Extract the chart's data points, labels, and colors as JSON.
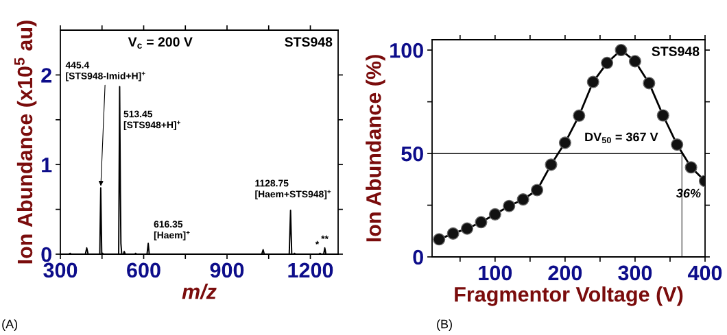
{
  "chart_data": [
    {
      "type": "line",
      "title": "STS948",
      "xlabel": "m/z",
      "ylabel": "Ion Abundance (x10$^{5}$ au)",
      "series": [
        {
          "color": "#000000",
          "x": [
            300,
            330,
            335,
            340,
            390,
            395,
            400,
            442,
            445.4,
            449,
            452,
            455,
            510,
            513.45,
            516,
            518,
            521,
            527,
            530,
            534,
            568,
            571,
            574,
            612,
            616.35,
            620,
            1025,
            1030,
            1034,
            1124,
            1128.75,
            1133,
            1140,
            1143,
            1146,
            1230,
            1235,
            1238,
            1248,
            1252,
            1256,
            1300
          ],
          "values": [
            0,
            0,
            0.01,
            0,
            0,
            0.07,
            0,
            0,
            0.74,
            0,
            0.01,
            0,
            0,
            1.87,
            0.72,
            0.12,
            0,
            0,
            0.03,
            0,
            0,
            0.01,
            0,
            0,
            0.12,
            0,
            0,
            0.05,
            0,
            0,
            0.49,
            0,
            0,
            0.01,
            0,
            0,
            0.01,
            0,
            0,
            0.07,
            0,
            0
          ]
        }
      ],
      "xlim": [
        300,
        1300
      ],
      "ylim": [
        0,
        2.5
      ],
      "xticks": [
        300,
        {
          "value": 450,
          "label": null
        },
        600,
        {
          "value": 750,
          "label": null
        },
        900,
        {
          "value": 1050,
          "label": null
        },
        1200
      ],
      "yticks": [
        0,
        {
          "value": 0.5,
          "label": null
        },
        1,
        {
          "value": 1.5,
          "label": null
        },
        2
      ],
      "grid": false,
      "legend": false,
      "marker": "none",
      "line_style": "solid",
      "annotations": [
        "V$_{c}$ = 200 V",
        {
          "text": "445.4\n[STS948-Imid+H]$^{+}$",
          "x": 445.4,
          "y": 0.74
        },
        {
          "text": "513.45\n[STS948+H]$^{+}$",
          "x": 513.45,
          "y": 1.87
        },
        "616.35\n[Haem]$^{+}$",
        "1128.75\n[Haem+STS948]$^{+}$",
        {
          "text": "*",
          "x": 1235,
          "y": 0.01
        },
        {
          "text": "**",
          "x": 1252,
          "y": 0.07
        },
        "(A)"
      ]
    },
    {
      "type": "line",
      "title": "STS948",
      "xlabel": "Fragmentor Voltage (V)",
      "ylabel": "Ion Abundance (%)",
      "x": [
        20,
        40,
        60,
        80,
        100,
        120,
        140,
        160,
        180,
        200,
        220,
        240,
        260,
        280,
        300,
        320,
        340,
        360,
        380,
        400
      ],
      "series": [
        {
          "color": "#000000",
          "values": [
            8.5,
            11.3,
            13.7,
            16.8,
            20.6,
            24.6,
            27.8,
            32.3,
            44.6,
            55.2,
            68.3,
            84.6,
            93.8,
            100,
            94.6,
            84.0,
            68.4,
            54.3,
            43.3,
            36.7
          ]
        }
      ],
      "xlim": [
        10,
        400
      ],
      "ylim": [
        0,
        105
      ],
      "xticks": [
        {
          "value": 50,
          "label": null
        },
        100,
        {
          "value": 150,
          "label": null
        },
        200,
        {
          "value": 250,
          "label": null
        },
        300,
        {
          "value": 350,
          "label": null
        },
        400
      ],
      "yticks": [
        0,
        {
          "value": 25,
          "label": null
        },
        50,
        {
          "value": 75,
          "label": null
        },
        100
      ],
      "grid": false,
      "legend": false,
      "marker": "circle",
      "line_style": "solid",
      "ref_lines": [
        {
          "axis": "y",
          "value": 50,
          "color": "#000000"
        },
        {
          "axis": "x",
          "value": 367,
          "color": "#555555"
        }
      ],
      "annotations": [
        "DV$_{50}$ = 367 V",
        "36%",
        "(B)"
      ]
    }
  ]
}
